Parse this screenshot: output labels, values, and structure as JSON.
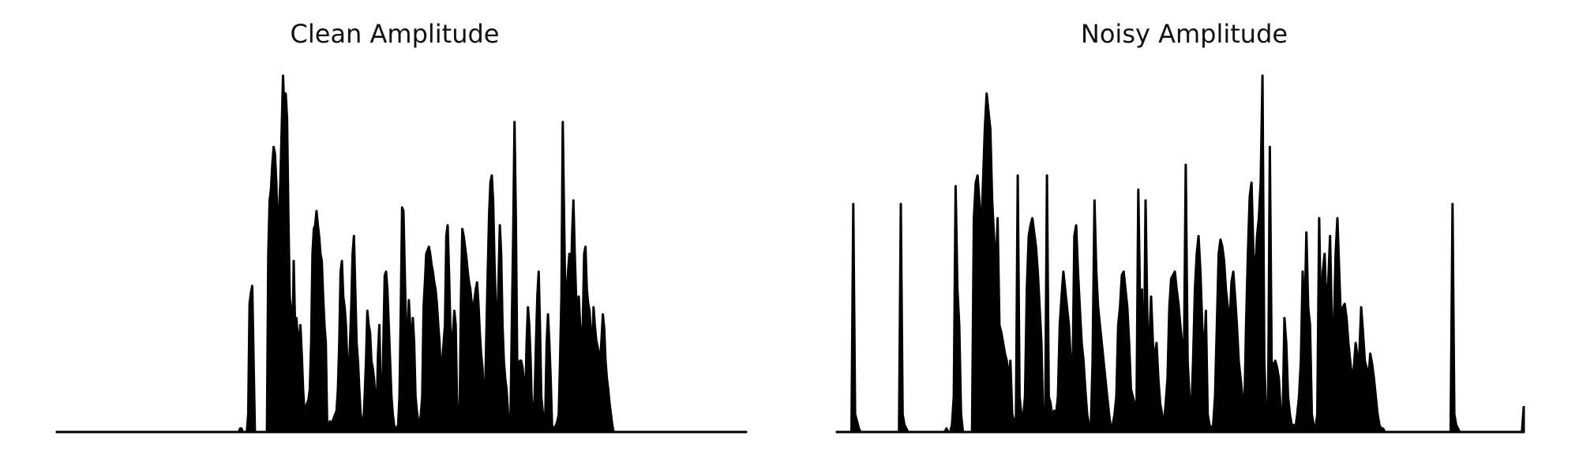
{
  "chart_data": [
    {
      "type": "area",
      "title": "Clean Amplitude",
      "axes": "hidden",
      "grid": false,
      "ylim": [
        0,
        1
      ],
      "series": [
        {
          "color": "#000000",
          "values": [
            0,
            0,
            0,
            0,
            0,
            0,
            0,
            0,
            0,
            0,
            0,
            0,
            0,
            0,
            0,
            0,
            0,
            0,
            0,
            0,
            0,
            0,
            0,
            0,
            0,
            0,
            0,
            0,
            0,
            0,
            0,
            0,
            0,
            0,
            0,
            0,
            0,
            0,
            0,
            0,
            0,
            0,
            0,
            0,
            0,
            0,
            0,
            0,
            0,
            0,
            0,
            0,
            0,
            0,
            0,
            0,
            0,
            0,
            0,
            0,
            0,
            0,
            0,
            0,
            0,
            0,
            0,
            0,
            0,
            0,
            0,
            0,
            0,
            0,
            0,
            0,
            0,
            0,
            0,
            0,
            0,
            0,
            0,
            0,
            0,
            0,
            0,
            0,
            0,
            0,
            0,
            0,
            0,
            0,
            0,
            0,
            0,
            0,
            0,
            0,
            0,
            0,
            0,
            0,
            0,
            0,
            0,
            0,
            0,
            0,
            0,
            0,
            0,
            0,
            0,
            0,
            0,
            0,
            0,
            0,
            0,
            0,
            0,
            0,
            0,
            0,
            0,
            0,
            0,
            0,
            0,
            0,
            0,
            0,
            0,
            0,
            0,
            0.01,
            0.01,
            0,
            0,
            0,
            0,
            0.05,
            0.36,
            0.39,
            0.41,
            0.2,
            0,
            0,
            0,
            0,
            0,
            0,
            0,
            0,
            0,
            0,
            0.5,
            0.65,
            0.68,
            0.75,
            0.8,
            0.78,
            0.7,
            0.55,
            0.62,
            0.7,
            0.85,
            1.0,
            0.9,
            0.95,
            0.88,
            0.6,
            0.38,
            0.34,
            0.2,
            0.48,
            0.3,
            0.32,
            0.27,
            0.25,
            0.3,
            0.22,
            0.12,
            0.06,
            0.07,
            0.08,
            0.09,
            0.12,
            0.25,
            0.5,
            0.57,
            0.58,
            0.62,
            0.58,
            0.55,
            0.5,
            0.48,
            0.38,
            0.3,
            0.25,
            0.02,
            0.01,
            0.03,
            0.02,
            0.03,
            0.04,
            0.05,
            0.06,
            0.12,
            0.25,
            0.45,
            0.48,
            0.38,
            0.35,
            0.3,
            0.2,
            0.15,
            0.24,
            0.35,
            0.5,
            0.55,
            0.4,
            0.25,
            0.2,
            0.12,
            0.05,
            0.03,
            0.02,
            0.1,
            0.2,
            0.34,
            0.3,
            0.28,
            0.2,
            0.18,
            0.15,
            0.1,
            0.05,
            0.22,
            0.3,
            0.12,
            0.05,
            0.25,
            0.44,
            0.45,
            0.4,
            0.3,
            0.2,
            0.1,
            0.05,
            0.02,
            0.01,
            0.01,
            0.02,
            0.1,
            0.35,
            0.63,
            0.62,
            0.45,
            0.28,
            0.25,
            0.37,
            0.3,
            0.2,
            0.32,
            0.25,
            0.1,
            0.06,
            0.03,
            0.02,
            0.05,
            0.1,
            0.35,
            0.42,
            0.5,
            0.51,
            0.52,
            0.5,
            0.47,
            0.45,
            0.42,
            0.4,
            0.36,
            0.3,
            0.25,
            0.15,
            0.2,
            0.25,
            0.3,
            0.55,
            0.58,
            0.45,
            0.3,
            0.2,
            0.28,
            0.34,
            0.3,
            0.1,
            0.02,
            0.05,
            0.38,
            0.57,
            0.55,
            0.52,
            0.49,
            0.45,
            0.42,
            0.4,
            0.36,
            0.35,
            0.37,
            0.4,
            0.42,
            0.36,
            0.28,
            0.22,
            0.18,
            0.1,
            0.1,
            0.28,
            0.45,
            0.61,
            0.7,
            0.72,
            0.65,
            0.48,
            0.35,
            0.25,
            0.42,
            0.58,
            0.5,
            0.3,
            0.2,
            0.15,
            0.12,
            0.06,
            0.02,
            0.05,
            0.3,
            0.55,
            0.87,
            0.6,
            0.2,
            0.19,
            0.2,
            0.2,
            0.18,
            0.14,
            0.08,
            0.25,
            0.35,
            0.3,
            0.2,
            0.06,
            0.05,
            0.1,
            0.25,
            0.38,
            0.45,
            0.3,
            0.1,
            0.06,
            0.03,
            0.05,
            0.25,
            0.33,
            0.25,
            0.15,
            0.02,
            0.01,
            0.01,
            0.02,
            0.03,
            0.05,
            0.2,
            0.38,
            0.87,
            0.6,
            0.35,
            0.39,
            0.45,
            0.5,
            0.4,
            0.55,
            0.65,
            0.5,
            0.38,
            0.36,
            0.38,
            0.3,
            0.25,
            0.3,
            0.5,
            0.52,
            0.4,
            0.36,
            0.34,
            0.28,
            0.22,
            0.35,
            0.3,
            0.26,
            0.24,
            0.22,
            0.2,
            0.26,
            0.33,
            0.29,
            0.2,
            0.15,
            0.12,
            0.08,
            0.05,
            0.02,
            0,
            0,
            0,
            0,
            0,
            0,
            0,
            0,
            0,
            0,
            0,
            0,
            0,
            0,
            0,
            0,
            0,
            0,
            0,
            0,
            0,
            0,
            0,
            0,
            0,
            0,
            0,
            0,
            0,
            0,
            0,
            0,
            0,
            0,
            0,
            0,
            0,
            0,
            0,
            0,
            0,
            0,
            0,
            0,
            0,
            0,
            0,
            0,
            0,
            0,
            0,
            0,
            0,
            0,
            0,
            0,
            0,
            0,
            0,
            0,
            0,
            0,
            0,
            0,
            0,
            0,
            0,
            0,
            0,
            0,
            0,
            0,
            0,
            0,
            0,
            0,
            0,
            0,
            0,
            0,
            0,
            0,
            0,
            0,
            0,
            0,
            0,
            0,
            0,
            0,
            0,
            0,
            0,
            0,
            0,
            0,
            0,
            0,
            0,
            0
          ]
        }
      ]
    },
    {
      "type": "area",
      "title": "Noisy Amplitude",
      "axes": "hidden",
      "grid": false,
      "ylim": [
        0,
        1
      ],
      "series": [
        {
          "color": "#000000",
          "values": [
            0,
            0,
            0,
            0,
            0,
            0,
            0,
            0,
            0,
            0.64,
            0.05,
            0.03,
            0.01,
            0,
            0,
            0,
            0,
            0,
            0,
            0,
            0,
            0,
            0,
            0,
            0,
            0,
            0,
            0,
            0,
            0,
            0,
            0,
            0,
            0,
            0,
            0.64,
            0.05,
            0.02,
            0.01,
            0,
            0,
            0,
            0,
            0,
            0,
            0,
            0,
            0,
            0,
            0,
            0,
            0,
            0,
            0,
            0,
            0,
            0,
            0,
            0,
            0,
            0.01,
            0,
            0,
            0.02,
            0.1,
            0.69,
            0.4,
            0.3,
            0.05,
            0,
            0,
            0,
            0,
            0,
            0,
            0.6,
            0.7,
            0.72,
            0.65,
            0.55,
            0.7,
            0.85,
            0.95,
            0.9,
            0.85,
            0.65,
            0.55,
            0.45,
            0.6,
            0.3,
            0.28,
            0.25,
            0.22,
            0.2,
            0.15,
            0.2,
            0.05,
            0.03,
            0.04,
            0.72,
            0.1,
            0.05,
            0.04,
            0.1,
            0.4,
            0.55,
            0.58,
            0.6,
            0.56,
            0.52,
            0.45,
            0.35,
            0.25,
            0.01,
            0.02,
            0.72,
            0.1,
            0.08,
            0.04,
            0.06,
            0.05,
            0.1,
            0.3,
            0.38,
            0.45,
            0.4,
            0.35,
            0.3,
            0.2,
            0.15,
            0.55,
            0.58,
            0.45,
            0.35,
            0.25,
            0.2,
            0.12,
            0.05,
            0.02,
            0.01,
            0.2,
            0.65,
            0.45,
            0.35,
            0.3,
            0.25,
            0.2,
            0.15,
            0.1,
            0.05,
            0.01,
            0.02,
            0.05,
            0.1,
            0.3,
            0.35,
            0.44,
            0.45,
            0.4,
            0.35,
            0.25,
            0.12,
            0.1,
            0.08,
            0.05,
            0.68,
            0.35,
            0.4,
            0.1,
            0.65,
            0.3,
            0.25,
            0.38,
            0.25,
            0.2,
            0.25,
            0.15,
            0.08,
            0.05,
            0.02,
            0.08,
            0.15,
            0.35,
            0.43,
            0.44,
            0.45,
            0.4,
            0.36,
            0.3,
            0.25,
            0.2,
            0.75,
            0.2,
            0.1,
            0.05,
            0.2,
            0.4,
            0.5,
            0.55,
            0.45,
            0.3,
            0.2,
            0.34,
            0.05,
            0.02,
            0.01,
            0.02,
            0.1,
            0.3,
            0.5,
            0.54,
            0.52,
            0.48,
            0.4,
            0.35,
            0.3,
            0.42,
            0.45,
            0.38,
            0.3,
            0.2,
            0.15,
            0.1,
            0.05,
            0.3,
            0.5,
            0.66,
            0.7,
            0.5,
            0.45,
            0.55,
            0.6,
            0.7,
            1.0,
            0.2,
            0.05,
            0.02,
            0.8,
            0.2,
            0.18,
            0.2,
            0.18,
            0.15,
            0.05,
            0.03,
            0.32,
            0.25,
            0.1,
            0.05,
            0.02,
            0.02,
            0.01,
            0.05,
            0.1,
            0.2,
            0.45,
            0.3,
            0.56,
            0.35,
            0.3,
            0.05,
            0.02,
            0.01,
            0.05,
            0.6,
            0.3,
            0.45,
            0.5,
            0.35,
            0.42,
            0.55,
            0.3,
            0.28,
            0.5,
            0.6,
            0.45,
            0.3,
            0.35,
            0.36,
            0.32,
            0.25,
            0.2,
            0.15,
            0.18,
            0.25,
            0.21,
            0.22,
            0.35,
            0.28,
            0.2,
            0.18,
            0.15,
            0.22,
            0.19,
            0.15,
            0.1,
            0.05,
            0.02,
            0.01,
            0.01,
            0,
            0,
            0,
            0,
            0,
            0,
            0,
            0,
            0,
            0,
            0,
            0,
            0,
            0,
            0,
            0,
            0,
            0,
            0,
            0,
            0,
            0,
            0,
            0,
            0,
            0,
            0,
            0,
            0,
            0,
            0,
            0,
            0,
            0,
            0,
            0,
            0,
            0.64,
            0.05,
            0.02,
            0.01,
            0,
            0,
            0,
            0,
            0,
            0,
            0,
            0,
            0,
            0,
            0,
            0,
            0,
            0,
            0,
            0,
            0,
            0,
            0,
            0,
            0,
            0,
            0,
            0,
            0,
            0,
            0,
            0,
            0,
            0,
            0,
            0,
            0,
            0,
            0,
            0.07
          ]
        }
      ]
    }
  ]
}
